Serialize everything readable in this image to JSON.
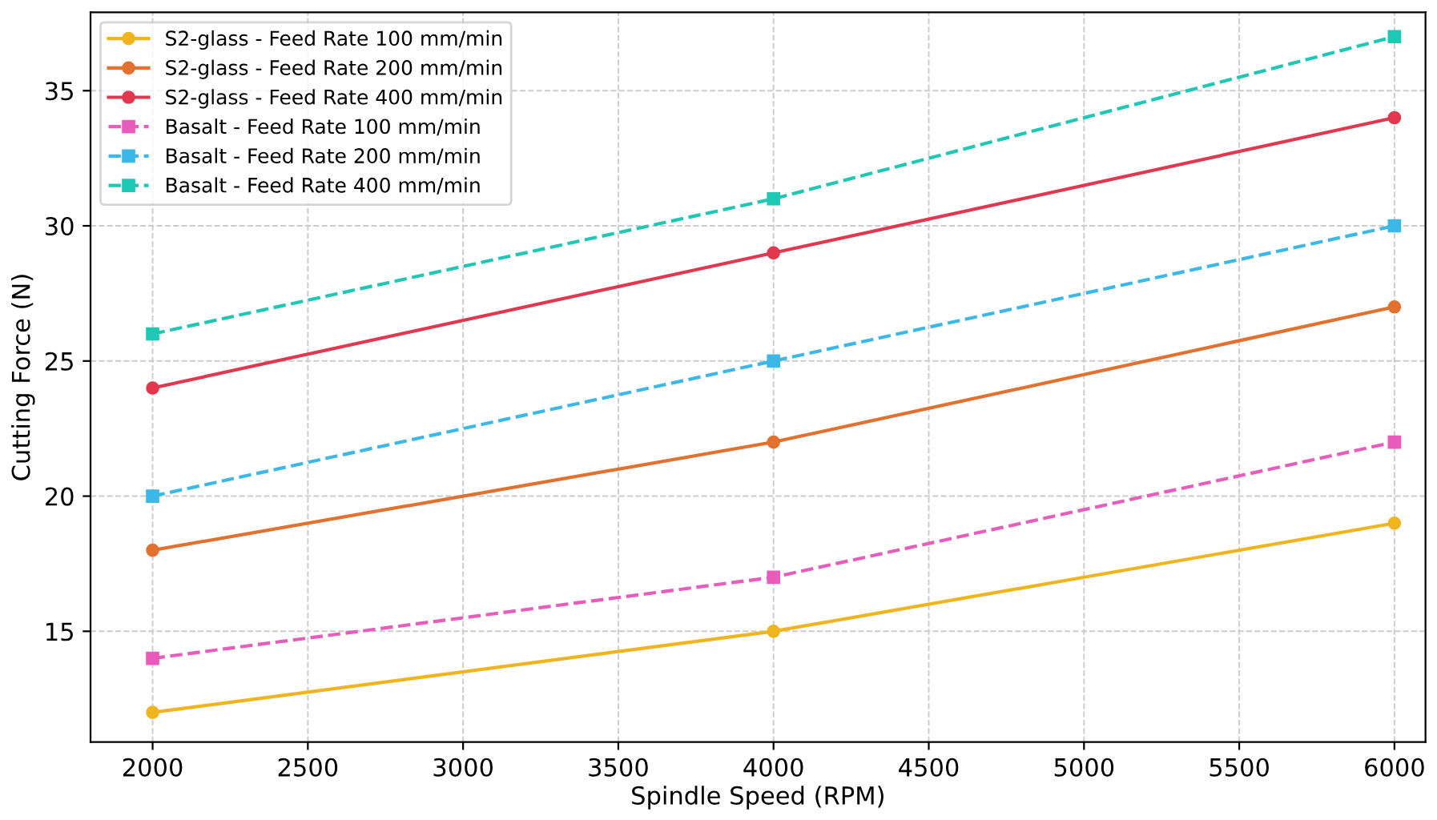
{
  "chart_data": {
    "type": "line",
    "xlabel": "Spindle Speed (RPM)",
    "ylabel": "Cutting Force (N)",
    "x": [
      2000,
      4000,
      6000
    ],
    "xlim": [
      1800,
      6100
    ],
    "ylim": [
      10.9,
      37.9
    ],
    "xticks": [
      2000,
      2500,
      3000,
      3500,
      4000,
      4500,
      5000,
      5500,
      6000
    ],
    "yticks": [
      15,
      20,
      25,
      30,
      35
    ],
    "grid": true,
    "legend": "top left",
    "series": [
      {
        "name": "S2-glass - Feed Rate 100 mm/min",
        "color": "#f0b41e",
        "values": [
          12,
          15,
          19
        ],
        "marker": "circle",
        "line_style": "solid"
      },
      {
        "name": "S2-glass - Feed Rate 200 mm/min",
        "color": "#e2702e",
        "values": [
          18,
          22,
          27
        ],
        "marker": "circle",
        "line_style": "solid"
      },
      {
        "name": "S2-glass - Feed Rate 400 mm/min",
        "color": "#e2384f",
        "values": [
          24,
          29,
          34
        ],
        "marker": "circle",
        "line_style": "solid"
      },
      {
        "name": "Basalt - Feed Rate 100 mm/min",
        "color": "#e85cbc",
        "values": [
          14,
          17,
          22
        ],
        "marker": "square",
        "line_style": "dashed"
      },
      {
        "name": "Basalt - Feed Rate 200 mm/min",
        "color": "#3cb8e8",
        "values": [
          20,
          25,
          30
        ],
        "marker": "square",
        "line_style": "dashed"
      },
      {
        "name": "Basalt - Feed Rate 400 mm/min",
        "color": "#1ec8b4",
        "values": [
          26,
          31,
          37
        ],
        "marker": "square",
        "line_style": "dashed"
      }
    ]
  }
}
